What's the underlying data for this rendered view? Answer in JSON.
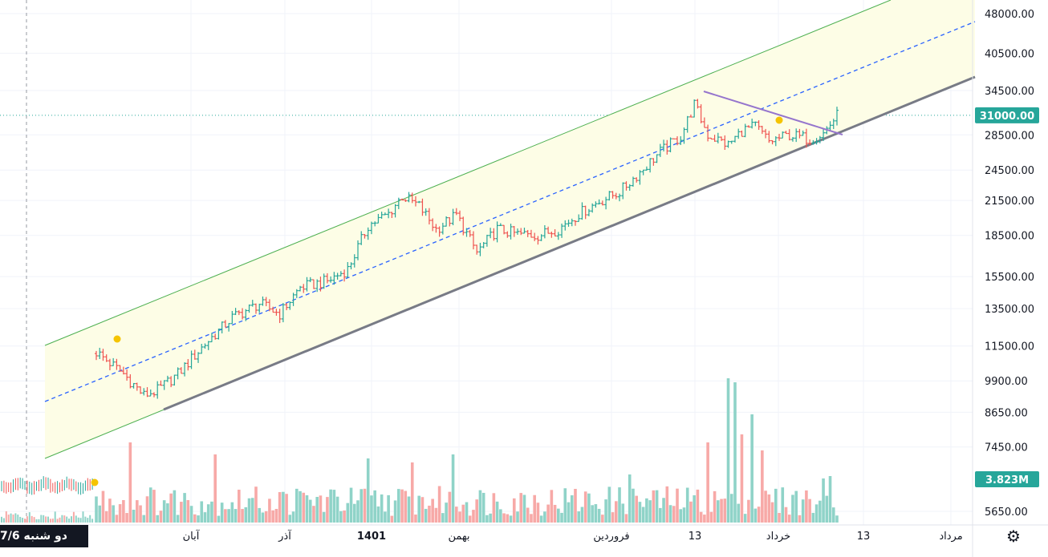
{
  "price_axis": {
    "ticks": [
      "48000.00",
      "40500.00",
      "34500.00",
      "28500.00",
      "24500.00",
      "21500.00",
      "18500.00",
      "15500.00",
      "13500.00",
      "11500.00",
      "9900.00",
      "8650.00",
      "7450.00",
      "5650.00"
    ],
    "last_price_label": "31000.00",
    "volume_label": "3.823M"
  },
  "time_axis": {
    "labels": [
      "آبان",
      "آذر",
      "1401",
      "بهمن",
      "فروردین",
      "13",
      "خرداد",
      "13",
      "مرداد"
    ]
  },
  "crosshair_date_label": "دو شنبه  7/6",
  "colors": {
    "up": "#26a69a",
    "down": "#ef5350",
    "vol_up": "#8fd3c8",
    "vol_down": "#f7a9a7",
    "channel": "#4caf50",
    "channel_fill": "#fdfde6",
    "midline": "#2962ff",
    "support": "#787b86",
    "resistance": "#9575cd",
    "marker": "#f5c400",
    "last_price_tag": "#26a69a"
  },
  "chart_data": {
    "type": "ohlc",
    "scale": "log",
    "ylim": [
      5650,
      48000
    ],
    "last_price": 31000,
    "last_volume": "3.823M",
    "price_path": [
      {
        "bar": 0,
        "close": 11200
      },
      {
        "bar": 8,
        "close": 10200
      },
      {
        "bar": 14,
        "close": 9300
      },
      {
        "bar": 18,
        "close": 9500
      },
      {
        "bar": 24,
        "close": 10200
      },
      {
        "bar": 32,
        "close": 11600
      },
      {
        "bar": 40,
        "close": 13000
      },
      {
        "bar": 48,
        "close": 13800
      },
      {
        "bar": 54,
        "close": 13200
      },
      {
        "bar": 60,
        "close": 14800
      },
      {
        "bar": 68,
        "close": 15200
      },
      {
        "bar": 74,
        "close": 16000
      },
      {
        "bar": 80,
        "close": 19300
      },
      {
        "bar": 86,
        "close": 20300
      },
      {
        "bar": 90,
        "close": 21900
      },
      {
        "bar": 95,
        "close": 21000
      },
      {
        "bar": 100,
        "close": 19000
      },
      {
        "bar": 106,
        "close": 20200
      },
      {
        "bar": 112,
        "close": 17200
      },
      {
        "bar": 118,
        "close": 19000
      },
      {
        "bar": 124,
        "close": 18600
      },
      {
        "bar": 130,
        "close": 18500
      },
      {
        "bar": 136,
        "close": 19000
      },
      {
        "bar": 142,
        "close": 20300
      },
      {
        "bar": 148,
        "close": 21400
      },
      {
        "bar": 154,
        "close": 22300
      },
      {
        "bar": 160,
        "close": 24300
      },
      {
        "bar": 166,
        "close": 26500
      },
      {
        "bar": 172,
        "close": 28300
      },
      {
        "bar": 176,
        "close": 32500
      },
      {
        "bar": 180,
        "close": 28500
      },
      {
        "bar": 186,
        "close": 27300
      },
      {
        "bar": 190,
        "close": 29000
      },
      {
        "bar": 194,
        "close": 29600
      },
      {
        "bar": 198,
        "close": 27700
      },
      {
        "bar": 204,
        "close": 28500
      },
      {
        "bar": 210,
        "close": 28000
      },
      {
        "bar": 214,
        "close": 28700
      },
      {
        "bar": 218,
        "close": 31000
      }
    ]
  }
}
